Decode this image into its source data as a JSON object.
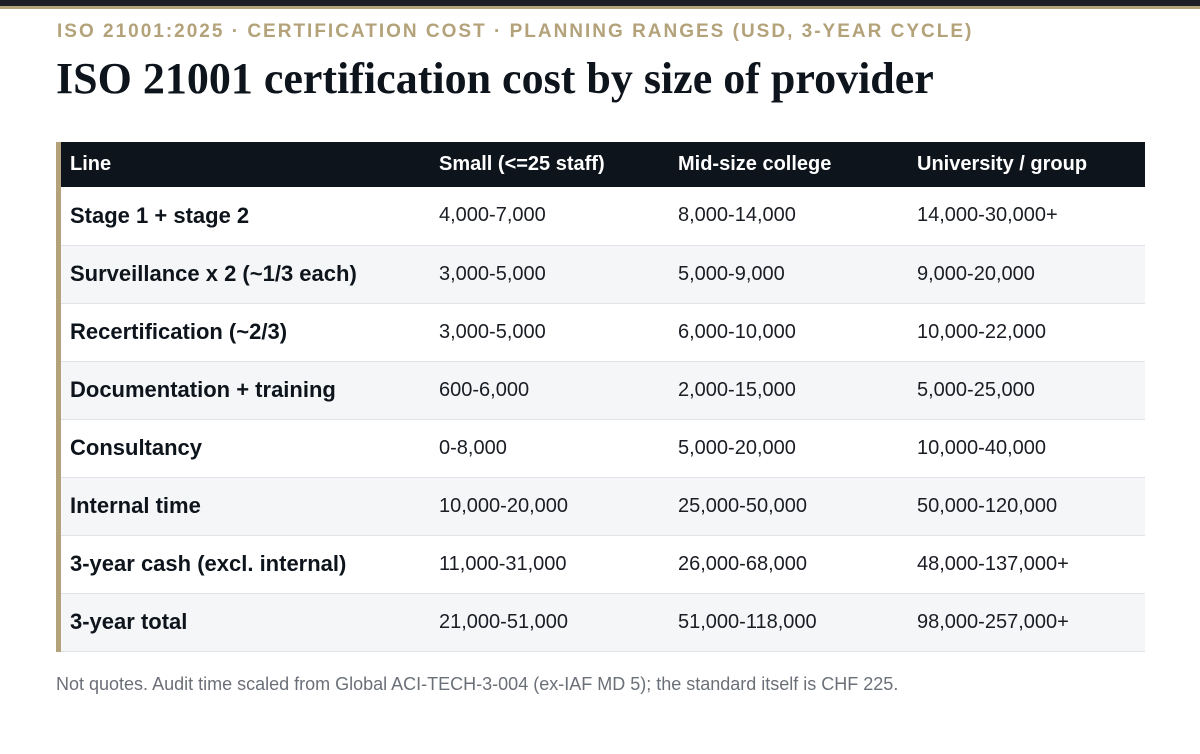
{
  "header": {
    "eyebrow": "ISO 21001:2025 · CERTIFICATION COST · PLANNING RANGES (USD, 3-YEAR CYCLE)",
    "title": "ISO 21001 certification cost by size of provider"
  },
  "table": {
    "columns": [
      "Line",
      "Small (<=25 staff)",
      "Mid-size college",
      "University / group"
    ],
    "rows": [
      [
        "Stage 1 + stage 2",
        "4,000-7,000",
        "8,000-14,000",
        "14,000-30,000+"
      ],
      [
        "Surveillance x 2 (~1/3 each)",
        "3,000-5,000",
        "5,000-9,000",
        "9,000-20,000"
      ],
      [
        "Recertification (~2/3)",
        "3,000-5,000",
        "6,000-10,000",
        "10,000-22,000"
      ],
      [
        "Documentation + training",
        "600-6,000",
        "2,000-15,000",
        "5,000-25,000"
      ],
      [
        "Consultancy",
        "0-8,000",
        "5,000-20,000",
        "10,000-40,000"
      ],
      [
        "Internal time",
        "10,000-20,000",
        "25,000-50,000",
        "50,000-120,000"
      ],
      [
        "3-year cash (excl. internal)",
        "11,000-31,000",
        "26,000-68,000",
        "48,000-137,000+"
      ],
      [
        "3-year total",
        "21,000-51,000",
        "51,000-118,000",
        "98,000-257,000+"
      ]
    ]
  },
  "footnote": "Not quotes. Audit time scaled from Global ACI-TECH-3-004 (ex-IAF MD 5); the standard itself is CHF 225.",
  "colors": {
    "accent_gold": "#b3a27a",
    "header_dark": "#0e141c",
    "row_alt": "#f5f6f8",
    "footnote_gray": "#6b7078"
  }
}
